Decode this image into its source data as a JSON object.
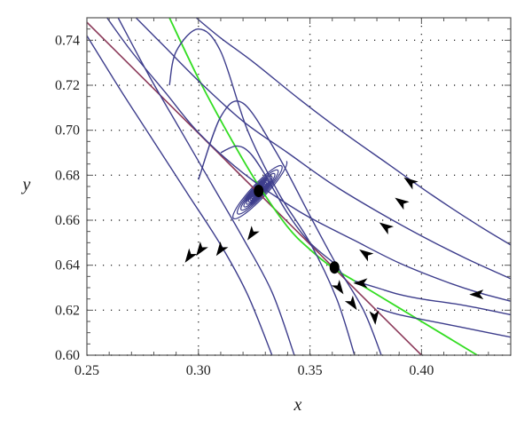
{
  "chart_data": {
    "type": "line",
    "title": "",
    "xlabel": "x",
    "ylabel": "y",
    "xlim": [
      0.25,
      0.44
    ],
    "ylim": [
      0.6,
      0.75
    ],
    "xticks": [
      0.25,
      0.3,
      0.35,
      0.4
    ],
    "xtick_labels": [
      "0.25",
      "0.30",
      "0.35",
      "0.40"
    ],
    "yticks": [
      0.6,
      0.62,
      0.64,
      0.66,
      0.68,
      0.7,
      0.72,
      0.74
    ],
    "ytick_labels": [
      "0.60",
      "0.62",
      "0.64",
      "0.66",
      "0.68",
      "0.70",
      "0.72",
      "0.74"
    ],
    "grid": true,
    "legend": "none",
    "colors": {
      "trajectory": "#3d3d8c",
      "green_curve": "#33dd22",
      "maroon_line": "#8c3a5a",
      "points": "#000000"
    },
    "series": [
      {
        "role": "maroon-line",
        "x": [
          0.25,
          0.4
        ],
        "y": [
          0.748,
          0.6
        ]
      },
      {
        "role": "green-curve",
        "x": [
          0.287,
          0.3,
          0.313,
          0.326,
          0.34,
          0.35,
          0.36,
          0.37,
          0.39,
          0.41,
          0.425
        ],
        "y": [
          0.75,
          0.723,
          0.699,
          0.677,
          0.657,
          0.647,
          0.639,
          0.633,
          0.621,
          0.609,
          0.6
        ]
      },
      {
        "role": "trajectory",
        "x": [
          0.259,
          0.27,
          0.285,
          0.3,
          0.32,
          0.345,
          0.37,
          0.39,
          0.41,
          0.425,
          0.44
        ],
        "y": [
          0.75,
          0.735,
          0.717,
          0.699,
          0.681,
          0.664,
          0.651,
          0.641,
          0.633,
          0.628,
          0.624
        ]
      },
      {
        "role": "trajectory",
        "x": [
          0.272,
          0.285,
          0.3,
          0.32,
          0.34,
          0.36,
          0.38,
          0.4,
          0.42,
          0.44
        ],
        "y": [
          0.75,
          0.737,
          0.722,
          0.704,
          0.69,
          0.676,
          0.664,
          0.653,
          0.643,
          0.634
        ]
      },
      {
        "role": "trajectory",
        "x": [
          0.299,
          0.31,
          0.325,
          0.345,
          0.365,
          0.385,
          0.405,
          0.425,
          0.44
        ],
        "y": [
          0.75,
          0.741,
          0.73,
          0.714,
          0.699,
          0.685,
          0.671,
          0.658,
          0.649
        ]
      },
      {
        "role": "trajectory",
        "x": [
          0.37,
          0.38,
          0.39,
          0.4,
          0.42,
          0.44
        ],
        "y": [
          0.633,
          0.63,
          0.627,
          0.625,
          0.622,
          0.618
        ]
      },
      {
        "role": "trajectory",
        "x": [
          0.38,
          0.39,
          0.41,
          0.43,
          0.44
        ],
        "y": [
          0.621,
          0.618,
          0.614,
          0.61,
          0.608
        ]
      },
      {
        "role": "trajectory",
        "x": [
          0.25,
          0.265,
          0.28,
          0.295,
          0.31,
          0.322,
          0.333
        ],
        "y": [
          0.742,
          0.718,
          0.695,
          0.672,
          0.649,
          0.627,
          0.6
        ]
      },
      {
        "role": "trajectory",
        "x": [
          0.264,
          0.278,
          0.292,
          0.306,
          0.32,
          0.333,
          0.343
        ],
        "y": [
          0.75,
          0.724,
          0.7,
          0.676,
          0.652,
          0.628,
          0.6
        ]
      },
      {
        "role": "trajectory",
        "x": [
          0.287,
          0.29,
          0.3,
          0.31,
          0.322,
          0.336,
          0.35,
          0.362,
          0.37
        ],
        "y": [
          0.72,
          0.735,
          0.745,
          0.735,
          0.7,
          0.672,
          0.65,
          0.625,
          0.6
        ]
      },
      {
        "role": "trajectory",
        "x": [
          0.3,
          0.31,
          0.32,
          0.335,
          0.35,
          0.362,
          0.374,
          0.382
        ],
        "y": [
          0.678,
          0.706,
          0.712,
          0.69,
          0.662,
          0.64,
          0.62,
          0.6
        ]
      },
      {
        "role": "trajectory",
        "x": [
          0.31,
          0.317,
          0.323,
          0.33,
          0.34,
          0.35,
          0.362
        ],
        "y": [
          0.69,
          0.693,
          0.69,
          0.68,
          0.663,
          0.65,
          0.64
        ]
      }
    ],
    "points": [
      {
        "x": 0.327,
        "y": 0.673
      },
      {
        "x": 0.361,
        "y": 0.639
      }
    ],
    "arrows": [
      {
        "x": 0.296,
        "y": 0.644,
        "dir": "down-left"
      },
      {
        "x": 0.301,
        "y": 0.647,
        "dir": "down-left"
      },
      {
        "x": 0.31,
        "y": 0.647,
        "dir": "down-left"
      },
      {
        "x": 0.324,
        "y": 0.654,
        "dir": "down-left"
      },
      {
        "x": 0.363,
        "y": 0.63,
        "dir": "down-right"
      },
      {
        "x": 0.369,
        "y": 0.623,
        "dir": "down-right"
      },
      {
        "x": 0.379,
        "y": 0.617,
        "dir": "down"
      },
      {
        "x": 0.373,
        "y": 0.632,
        "dir": "left"
      },
      {
        "x": 0.375,
        "y": 0.645,
        "dir": "up-left"
      },
      {
        "x": 0.384,
        "y": 0.657,
        "dir": "up-left"
      },
      {
        "x": 0.391,
        "y": 0.668,
        "dir": "up-left"
      },
      {
        "x": 0.395,
        "y": 0.677,
        "dir": "up-left"
      },
      {
        "x": 0.425,
        "y": 0.627,
        "dir": "left"
      }
    ]
  }
}
